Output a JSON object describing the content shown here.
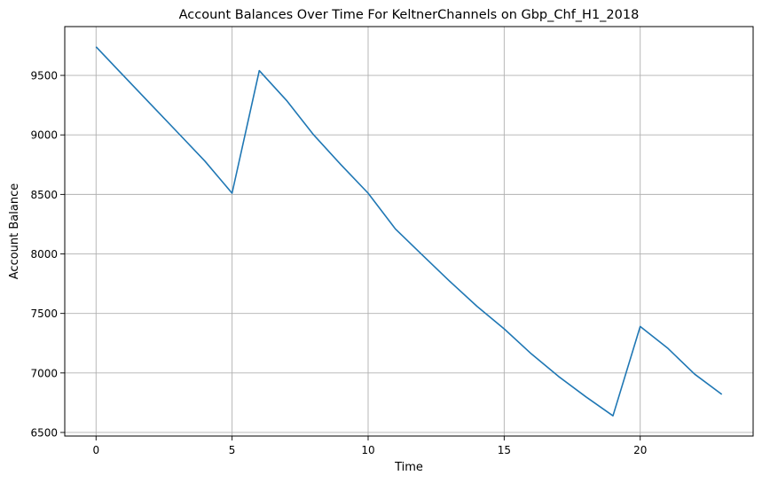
{
  "chart_data": {
    "type": "line",
    "title": "Account Balances Over Time For KeltnerChannels on Gbp_Chf_H1_2018",
    "xlabel": "Time",
    "ylabel": "Account Balance",
    "x": [
      0,
      1,
      2,
      3,
      4,
      5,
      6,
      7,
      8,
      9,
      10,
      11,
      12,
      13,
      14,
      15,
      16,
      17,
      18,
      19,
      20,
      21,
      22,
      23
    ],
    "series": [
      {
        "values": [
          9740,
          9500,
          9260,
          9020,
          8780,
          8510,
          9540,
          9290,
          9000,
          8750,
          8510,
          8210,
          7990,
          7770,
          7560,
          7370,
          7160,
          6970,
          6800,
          6640,
          7390,
          7210,
          6990,
          6820
        ],
        "color": "#1f77b4"
      }
    ],
    "xlim": [
      -1.15,
      24.15
    ],
    "ylim": [
      6470,
      9910
    ],
    "xticks": [
      0,
      5,
      10,
      15,
      20
    ],
    "xtick_labels": [
      "0",
      "5",
      "10",
      "15",
      "20"
    ],
    "yticks": [
      6500,
      7000,
      7500,
      8000,
      8500,
      9000,
      9500
    ],
    "ytick_labels": [
      "6500",
      "7000",
      "7500",
      "8000",
      "8500",
      "9000",
      "9500"
    ],
    "grid": true,
    "grid_color": "#b0b0b0",
    "legend": "none"
  }
}
